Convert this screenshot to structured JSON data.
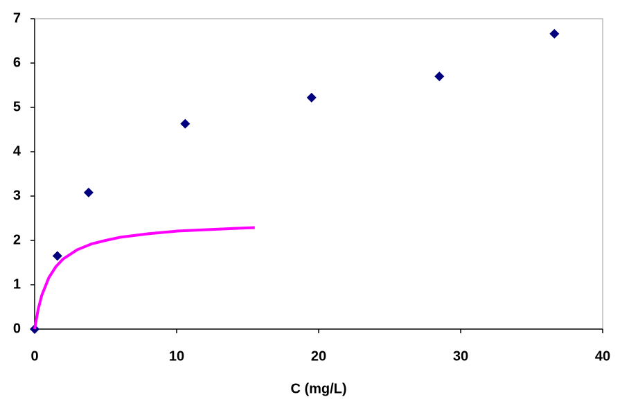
{
  "chart_data": {
    "type": "scatter",
    "x_label": "C (mg/L)",
    "xlim": [
      0,
      40
    ],
    "xticks": [
      0,
      10,
      20,
      30,
      40
    ],
    "ylim": [
      0,
      7
    ],
    "yticks": [
      0,
      1,
      2,
      3,
      4,
      5,
      6,
      7
    ],
    "series": [
      {
        "type": "scatter",
        "marker": "diamond",
        "color": "#00007f",
        "x": [
          0,
          1.6,
          3.8,
          10.6,
          19.5,
          28.5,
          36.6
        ],
        "values": [
          0,
          1.65,
          3.08,
          4.63,
          5.22,
          5.7,
          6.66
        ]
      },
      {
        "type": "line",
        "color": "#ff00ff",
        "x": [
          0,
          0.25,
          0.5,
          1,
          1.5,
          2,
          3,
          4,
          5,
          6,
          8,
          10,
          12,
          14,
          15.5
        ],
        "values": [
          0,
          0.45,
          0.76,
          1.16,
          1.41,
          1.58,
          1.79,
          1.92,
          2.0,
          2.07,
          2.15,
          2.21,
          2.24,
          2.27,
          2.29
        ]
      }
    ]
  }
}
